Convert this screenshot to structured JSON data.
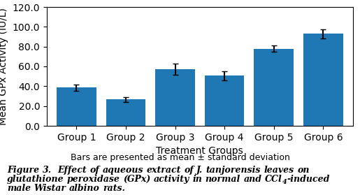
{
  "chart_data": {
    "type": "bar",
    "categories": [
      "Group 1",
      "Group 2",
      "Group 3",
      "Group 4",
      "Group 5",
      "Group 6"
    ],
    "values": [
      38.5,
      26.5,
      57.0,
      50.5,
      78.0,
      93.0
    ],
    "errors": [
      3.5,
      2.5,
      5.5,
      4.5,
      3.0,
      4.5
    ],
    "xlabel": "Treatment Groups",
    "ylabel": "Mean GPx Activity (IU/L)",
    "ylim": [
      0.0,
      120.0
    ],
    "yticks": [
      {
        "value": 0,
        "label": "0.0"
      },
      {
        "value": 20,
        "label": "20.0"
      },
      {
        "value": 40,
        "label": "40.0"
      },
      {
        "value": 60,
        "label": "60.0"
      },
      {
        "value": 80,
        "label": "80.0"
      },
      {
        "value": 100,
        "label": "100.0"
      },
      {
        "value": 120,
        "label": "120.0"
      }
    ],
    "annotations": [
      "Bars are presented as mean ± standard deviation",
      "Figure 3.  Effect of aqueous extract of J. tanjorensis leaves on glutathione peroxidase (GPx) activity in normal and CCl",
      "4",
      "-induced male Wistar albino rats."
    ]
  }
}
